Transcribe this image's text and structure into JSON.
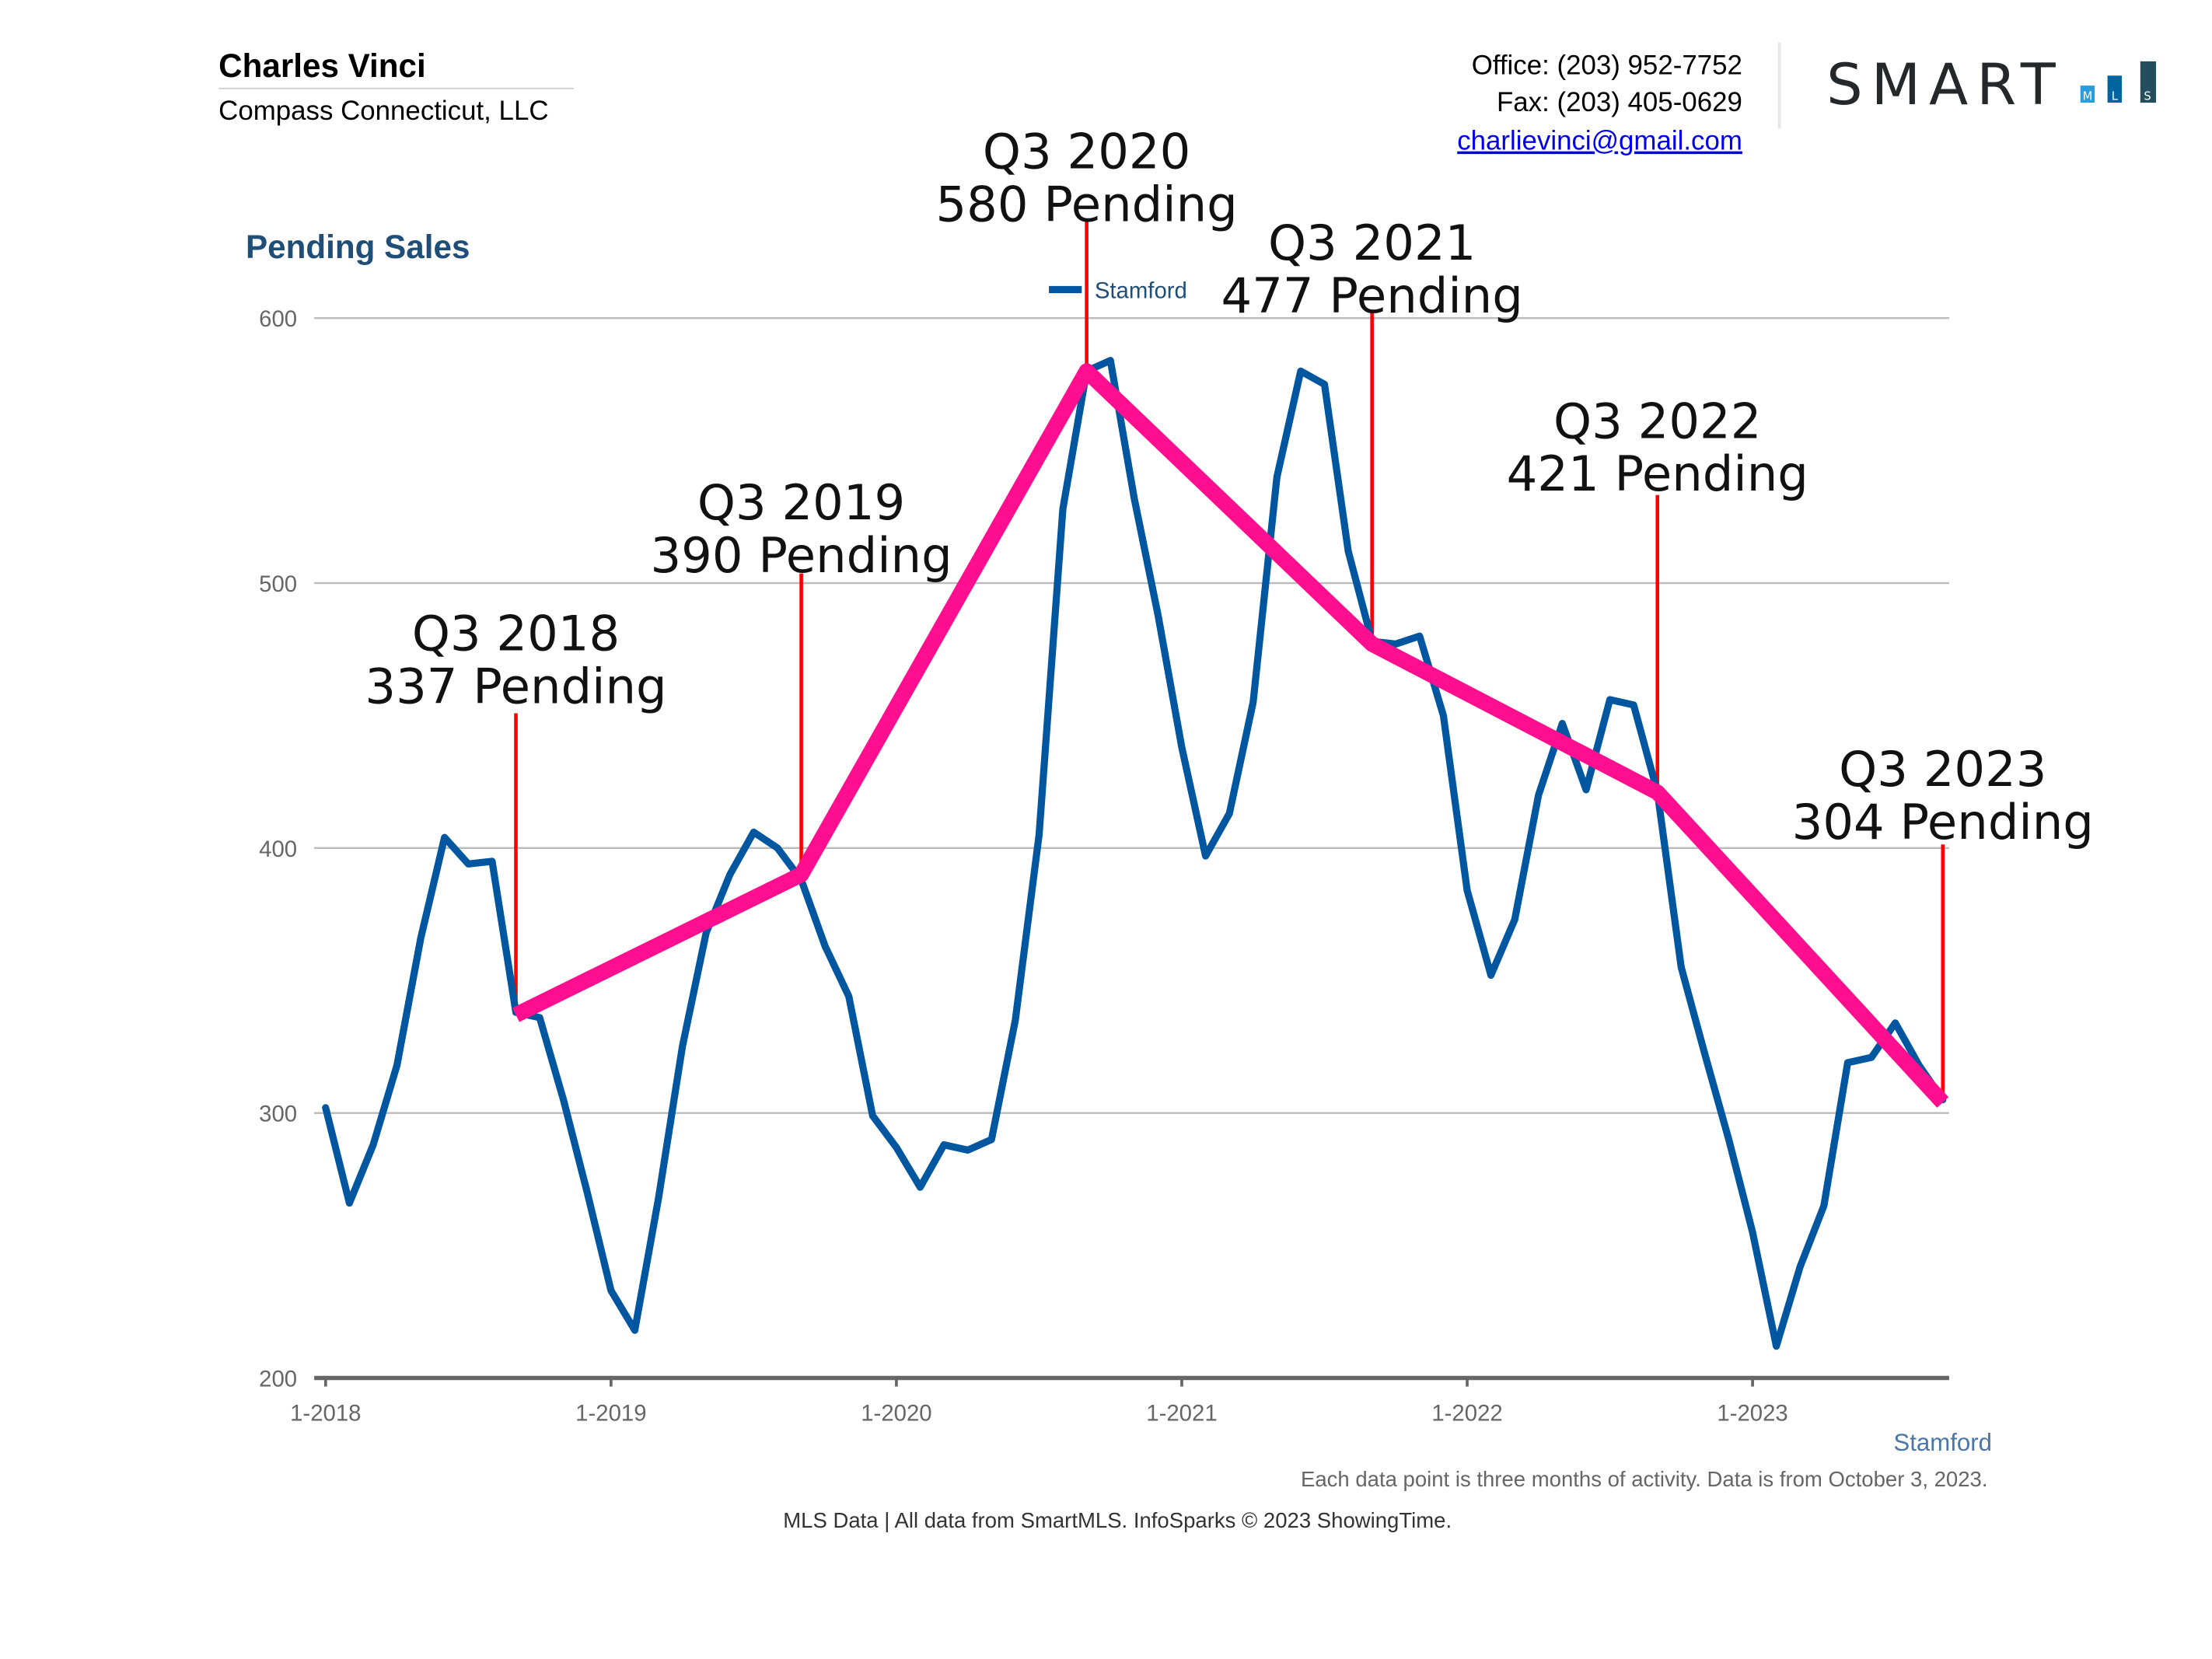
{
  "header": {
    "agent_name": "Charles Vinci",
    "brokerage": "Compass Connecticut, LLC",
    "office": "Office: (203) 952-7752",
    "fax": "Fax: (203) 405-0629",
    "email": "charlievinci@gmail.com",
    "logo_text": "SMART",
    "logo_sub": [
      "M",
      "L",
      "S"
    ]
  },
  "footer": {
    "region_label": "Stamford",
    "note": "Each data point is three months of activity. Data is from October 3, 2023.",
    "source": "MLS Data | All data from SmartMLS. InfoSparks © 2023 ShowingTime."
  },
  "colors": {
    "series": "#0057a0",
    "trend": "#ff0f8f",
    "marker_lines": "#ff0000",
    "title": "#1f4e79",
    "logo_dark": "#25282b",
    "logo_m": "#2a9bdc",
    "logo_l": "#00659f",
    "logo_s": "#244e5e",
    "email": "#0000ee"
  },
  "chart_data": {
    "type": "line",
    "title": "Pending Sales",
    "xlabel": "",
    "ylabel": "",
    "ylim": [
      200,
      600
    ],
    "yticks": [
      "200",
      "300",
      "400",
      "500",
      "600"
    ],
    "xticks": [
      "1-2018",
      "1-2019",
      "1-2020",
      "1-2021",
      "1-2022",
      "1-2023"
    ],
    "grid": true,
    "legend": "top-center",
    "series": [
      {
        "name": "Stamford",
        "start": "2018-01",
        "frequency": "monthly",
        "values": [
          302,
          266,
          288,
          318,
          366,
          404,
          394,
          395,
          338,
          336,
          305,
          270,
          233,
          218,
          268,
          325,
          368,
          390,
          406,
          400,
          388,
          363,
          344,
          299,
          287,
          272,
          288,
          286,
          290,
          335,
          405,
          528,
          580,
          584,
          532,
          488,
          438,
          397,
          413,
          455,
          540,
          580,
          575,
          512,
          478,
          477,
          480,
          450,
          384,
          352,
          373,
          420,
          447,
          422,
          456,
          454,
          421,
          355,
          322,
          290,
          255,
          212,
          242,
          265,
          319,
          321,
          334,
          318,
          305
        ]
      }
    ],
    "annotations": [
      {
        "period": "Q3 2018",
        "month": "2018-09",
        "value": 337,
        "line1": "Q3 2018",
        "line2": "337 Pending"
      },
      {
        "period": "Q3 2019",
        "month": "2019-09",
        "value": 390,
        "line1": "Q3 2019",
        "line2": "390 Pending"
      },
      {
        "period": "Q3 2020",
        "month": "2020-09",
        "value": 580,
        "line1": "Q3 2020",
        "line2": "580 Pending"
      },
      {
        "period": "Q3 2021",
        "month": "2021-09",
        "value": 477,
        "line1": "Q3 2021",
        "line2": "477 Pending"
      },
      {
        "period": "Q3 2022",
        "month": "2022-09",
        "value": 421,
        "line1": "Q3 2022",
        "line2": "421 Pending"
      },
      {
        "period": "Q3 2023",
        "month": "2023-09",
        "value": 304,
        "line1": "Q3 2023",
        "line2": "304 Pending"
      }
    ]
  }
}
